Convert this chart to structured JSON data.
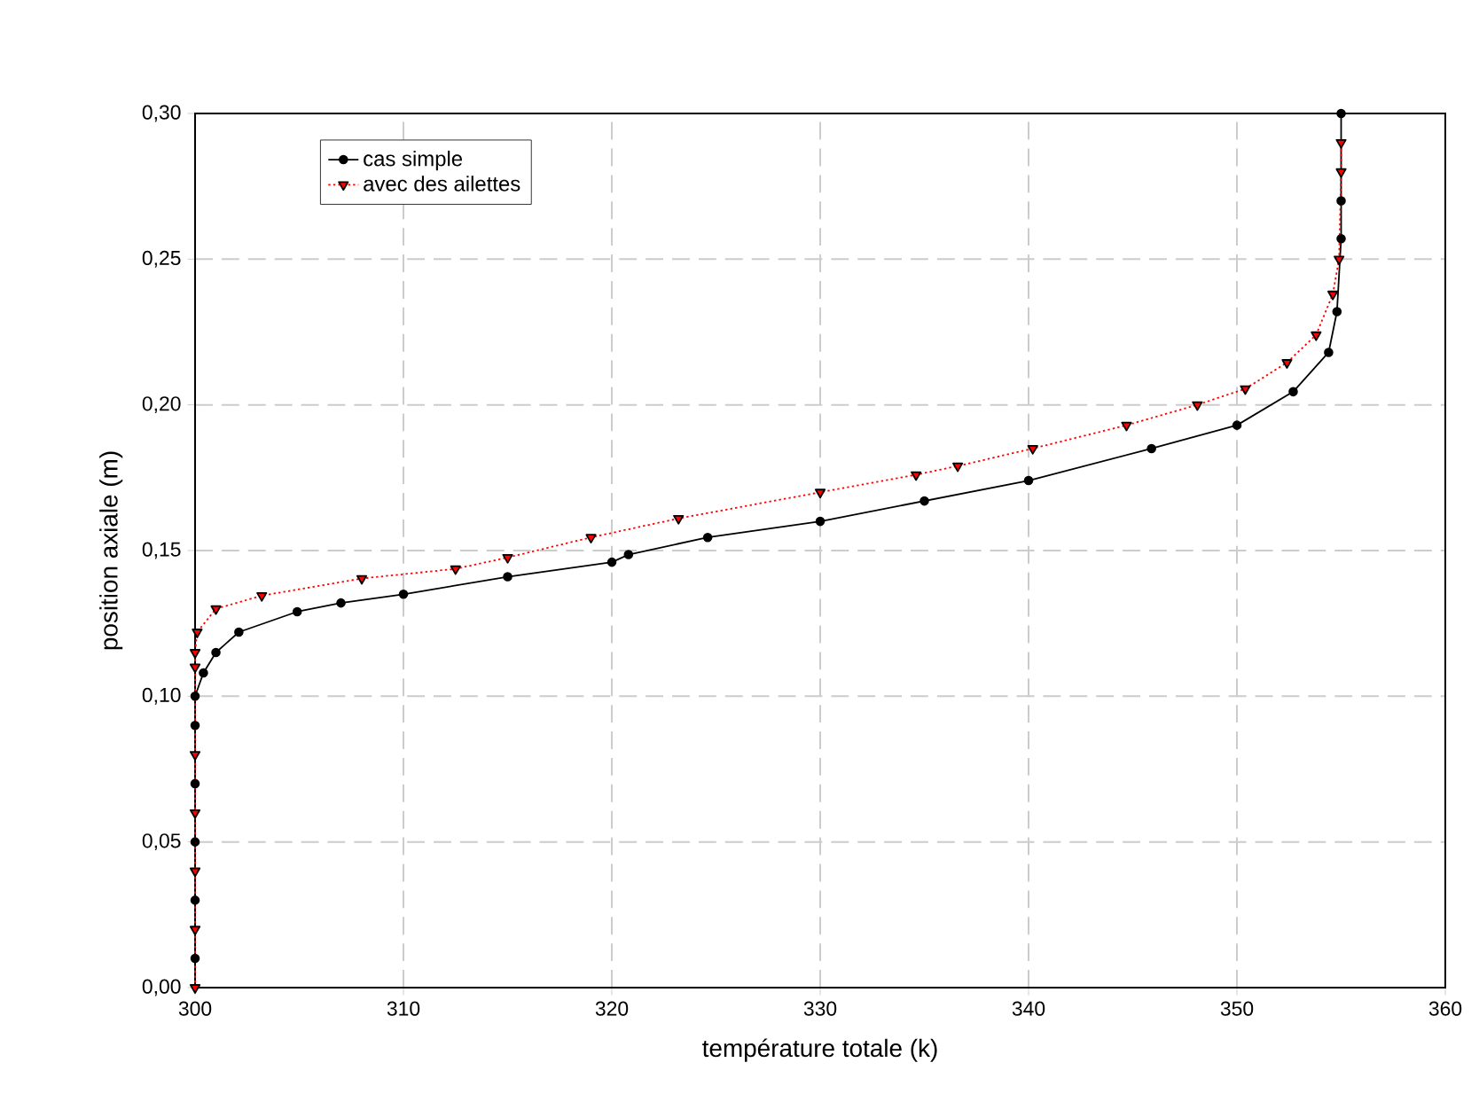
{
  "chart_data": {
    "type": "line",
    "xlabel": "température totale (k)",
    "ylabel": "position axiale (m)",
    "xlim": [
      300,
      360
    ],
    "ylim": [
      0,
      0.3
    ],
    "xticks": [
      300,
      310,
      320,
      330,
      340,
      350,
      360
    ],
    "yticks": [
      {
        "value": 0,
        "label": "0,00"
      },
      {
        "value": 0.05,
        "label": "0,05"
      },
      {
        "value": 0.1,
        "label": "0,10"
      },
      {
        "value": 0.15,
        "label": "0,15"
      },
      {
        "value": 0.2,
        "label": "0,20"
      },
      {
        "value": 0.25,
        "label": "0,25"
      },
      {
        "value": 0.3,
        "label": "0,30"
      }
    ],
    "grid": true,
    "legend": "top left",
    "series": [
      {
        "name": "cas simple",
        "color": "#000000",
        "marker": "circle",
        "line_style": "solid",
        "x": [
          300,
          300,
          300,
          300,
          300,
          300,
          300.4,
          301,
          302.1,
          304.9,
          307,
          310,
          315,
          320,
          320.8,
          324.6,
          330,
          335,
          340,
          345.9,
          350,
          352.7,
          354.4,
          354.8,
          355,
          355,
          355
        ],
        "values": [
          0.01,
          0.03,
          0.05,
          0.07,
          0.09,
          0.1,
          0.108,
          0.115,
          0.122,
          0.129,
          0.132,
          0.135,
          0.141,
          0.146,
          0.1486,
          0.1545,
          0.16,
          0.167,
          0.174,
          0.185,
          0.193,
          0.2045,
          0.218,
          0.232,
          0.257,
          0.27,
          0.3
        ]
      },
      {
        "name": "avec des ailettes",
        "color": "#ff0000",
        "marker": "triangle",
        "line_style": "dotted",
        "x": [
          300,
          300,
          300,
          300,
          300,
          300,
          300,
          300.1,
          301,
          303.2,
          308,
          312.5,
          315,
          319,
          323.2,
          330,
          334.6,
          336.6,
          340.2,
          344.7,
          348.1,
          350.4,
          352.4,
          353.8,
          354.6,
          354.9,
          355,
          355
        ],
        "values": [
          0,
          0.02,
          0.04,
          0.06,
          0.08,
          0.11,
          0.115,
          0.122,
          0.13,
          0.1345,
          0.1404,
          0.1437,
          0.1476,
          0.1545,
          0.161,
          0.17,
          0.176,
          0.179,
          0.185,
          0.193,
          0.2,
          0.2055,
          0.2145,
          0.224,
          0.238,
          0.25,
          0.28,
          0.29
        ]
      }
    ]
  }
}
